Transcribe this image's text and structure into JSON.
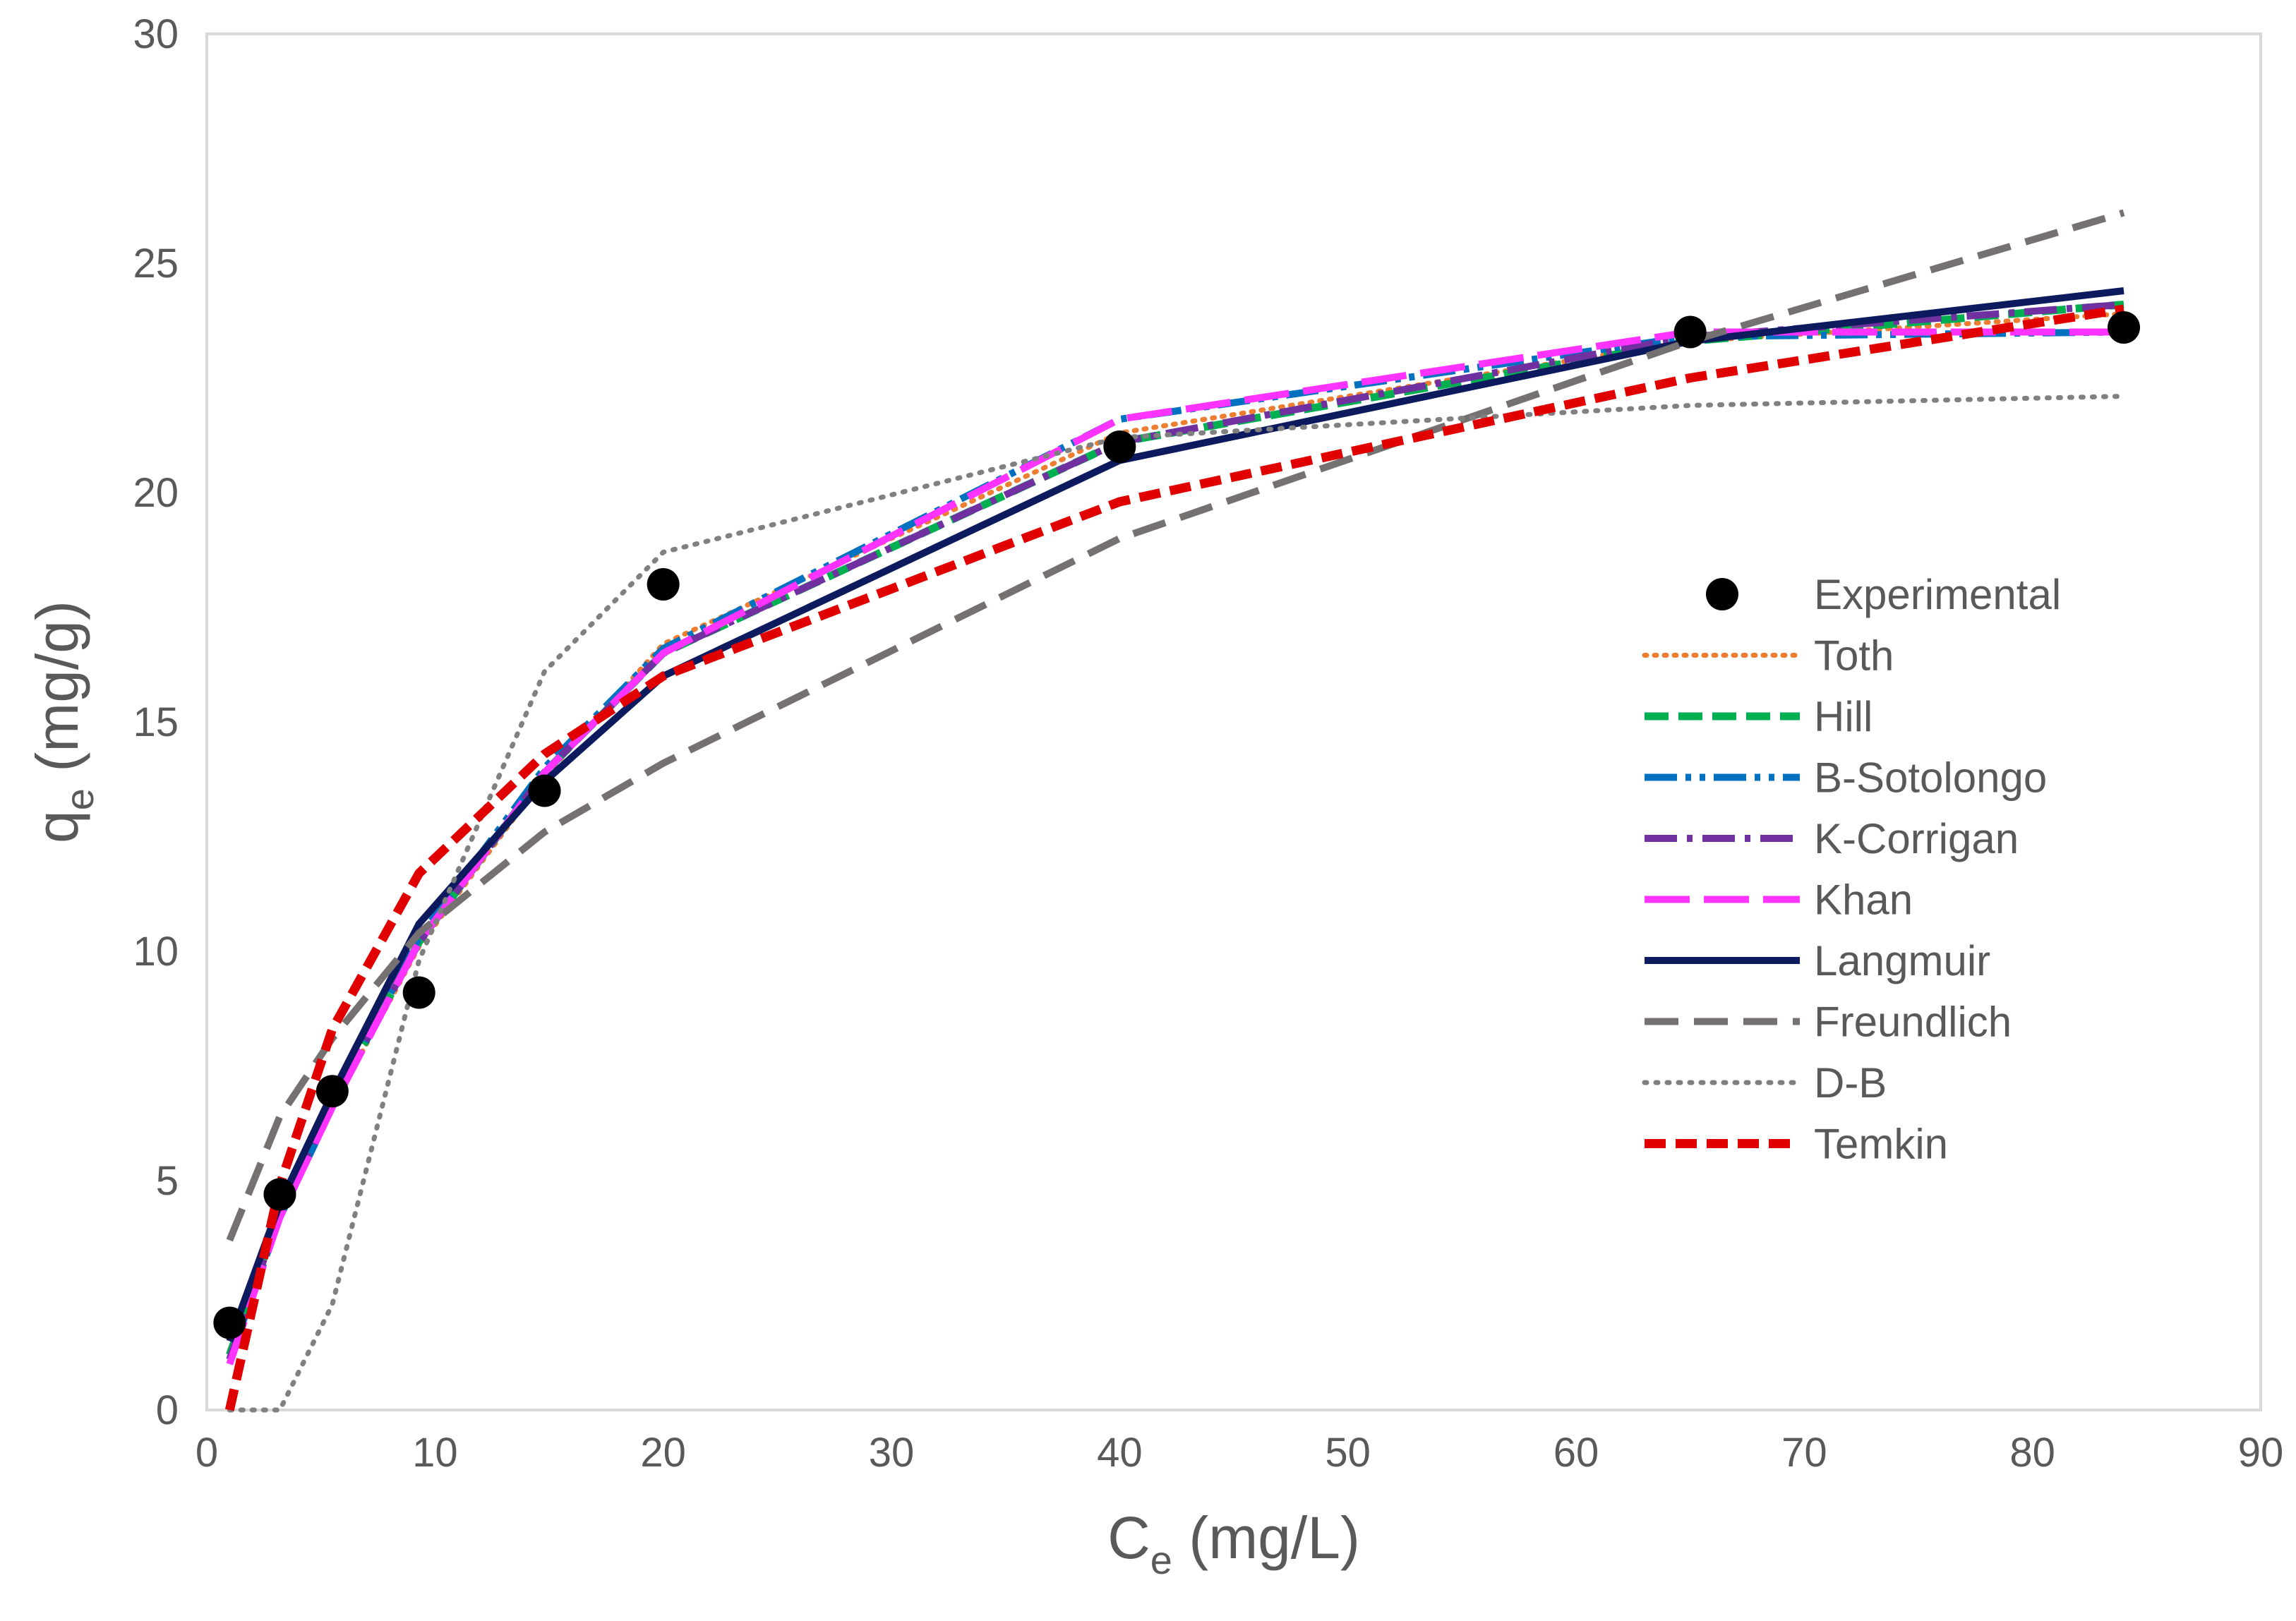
{
  "chart_data": {
    "type": "line",
    "title": "",
    "xlabel": {
      "main": "C",
      "sub": "e",
      "unit": " (mg/L)"
    },
    "ylabel": {
      "main": "q",
      "sub": "e",
      "unit": " (mg/g)"
    },
    "xlim": [
      0,
      90
    ],
    "ylim": [
      0,
      30
    ],
    "xticks": [
      "0",
      "10",
      "20",
      "30",
      "40",
      "50",
      "60",
      "70",
      "80",
      "90"
    ],
    "yticks": [
      "0",
      "5",
      "10",
      "15",
      "20",
      "25",
      "30"
    ],
    "grid": false,
    "legend_position": "right",
    "x": [
      1,
      3.2,
      5.5,
      9.3,
      14.8,
      20,
      40,
      65,
      84
    ],
    "experimental": {
      "name": "Experimental",
      "color": "#000000",
      "values": [
        1.9,
        4.7,
        6.95,
        9.1,
        13.5,
        18,
        21,
        23.5,
        23.6
      ]
    },
    "series": [
      {
        "name": "Toth",
        "color": "#ED7D31",
        "style": "dotted",
        "values": [
          1.3,
          4.2,
          6.6,
          10.1,
          13.8,
          16.7,
          21.3,
          23.3,
          23.9
        ]
      },
      {
        "name": "Hill",
        "color": "#00B050",
        "style": "dashed",
        "values": [
          1.2,
          4.3,
          6.7,
          10.2,
          13.9,
          16.5,
          21.1,
          23.3,
          24.1
        ]
      },
      {
        "name": "B-Sotolongo",
        "color": "#0070C0",
        "style": "dashdotdot",
        "values": [
          1.1,
          4.2,
          6.6,
          10.3,
          14.0,
          16.6,
          21.6,
          23.4,
          23.5
        ]
      },
      {
        "name": "K-Corrigan",
        "color": "#7030A0",
        "style": "dashdot",
        "values": [
          1.1,
          4.3,
          6.7,
          10.2,
          13.9,
          16.5,
          21.1,
          23.4,
          24.1
        ]
      },
      {
        "name": "Khan",
        "color": "#FF33FF",
        "style": "longdash",
        "values": [
          1.0,
          4.2,
          6.6,
          10.2,
          13.9,
          16.5,
          21.6,
          23.5,
          23.5
        ]
      },
      {
        "name": "Langmuir",
        "color": "#0D1B5E",
        "style": "solid",
        "values": [
          1.5,
          4.5,
          6.9,
          10.6,
          13.7,
          16.0,
          20.7,
          23.3,
          24.4
        ]
      },
      {
        "name": "Freundlich",
        "color": "#767171",
        "style": "dashed",
        "values": [
          3.7,
          6.4,
          8.1,
          10.4,
          12.6,
          14.1,
          19.0,
          23.3,
          26.1
        ]
      },
      {
        "name": "D-B",
        "color": "#808080",
        "style": "dotted",
        "values": [
          0,
          0,
          2.3,
          9.8,
          16.1,
          18.7,
          21.2,
          21.9,
          22.1
        ]
      },
      {
        "name": "Temkin",
        "color": "#E00000",
        "style": "dashed",
        "values": [
          0,
          4.9,
          8.3,
          11.7,
          14.3,
          16.0,
          19.8,
          22.5,
          24.0
        ]
      }
    ]
  }
}
